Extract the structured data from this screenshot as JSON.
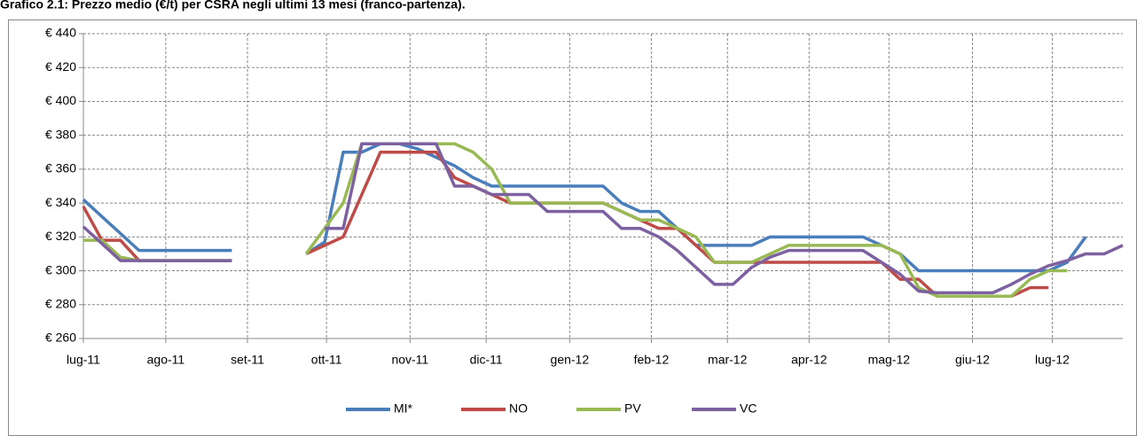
{
  "chart_data": {
    "type": "line",
    "title": "Grafico 2.1: Prezzo medio (€/t) per CSRA negli ultimi 13 mesi (franco-partenza).",
    "x": [
      0,
      1,
      2,
      3,
      4,
      5,
      6,
      7,
      8,
      9,
      10,
      11,
      12,
      13,
      14,
      15,
      16,
      17,
      18,
      19,
      20,
      21,
      22,
      23,
      24,
      25,
      26,
      27,
      28,
      29,
      30,
      31,
      32,
      33,
      34,
      35,
      36,
      37,
      38,
      39,
      40,
      41,
      42,
      43,
      44,
      45,
      46,
      47,
      48,
      49,
      50,
      51,
      52,
      53,
      54,
      55,
      56
    ],
    "xlim": [
      0,
      56
    ],
    "xticks": [
      {
        "value": 0,
        "label": "lug-11"
      },
      {
        "value": 4.44,
        "label": "ago-11"
      },
      {
        "value": 8.84,
        "label": "set-11"
      },
      {
        "value": 13.1,
        "label": "ott-11"
      },
      {
        "value": 17.6,
        "label": "nov-11"
      },
      {
        "value": 21.7,
        "label": "dic-11"
      },
      {
        "value": 26.2,
        "label": "gen-12"
      },
      {
        "value": 30.6,
        "label": "feb-12"
      },
      {
        "value": 34.7,
        "label": "mar-12"
      },
      {
        "value": 39.1,
        "label": "apr-12"
      },
      {
        "value": 43.4,
        "label": "mag-12"
      },
      {
        "value": 47.9,
        "label": "giu-12"
      },
      {
        "value": 52.2,
        "label": "lug-12"
      }
    ],
    "ylim": [
      260,
      440
    ],
    "yticks": [
      {
        "value": 260,
        "label": "€ 260"
      },
      {
        "value": 280,
        "label": "€ 280"
      },
      {
        "value": 300,
        "label": "€ 300"
      },
      {
        "value": 320,
        "label": "€ 320"
      },
      {
        "value": 340,
        "label": "€ 340"
      },
      {
        "value": 360,
        "label": "€ 360"
      },
      {
        "value": 380,
        "label": "€ 380"
      },
      {
        "value": 400,
        "label": "€ 400"
      },
      {
        "value": 420,
        "label": "€ 420"
      },
      {
        "value": 440,
        "label": "€ 440"
      }
    ],
    "grid": true,
    "legend": "bottom",
    "series": [
      {
        "name": "MI*",
        "color": "#4a7ebb",
        "values": [
          342,
          332,
          322,
          312,
          312,
          312,
          312,
          312,
          312,
          null,
          null,
          null,
          310,
          317,
          370,
          370,
          375,
          375,
          372,
          367,
          362,
          355,
          350,
          350,
          350,
          350,
          350,
          350,
          350,
          340,
          335,
          335,
          325,
          315,
          315,
          315,
          315,
          320,
          320,
          320,
          320,
          320,
          320,
          315,
          310,
          300,
          300,
          300,
          300,
          300,
          300,
          300,
          300,
          305,
          320,
          null,
          null
        ]
      },
      {
        "name": "NO",
        "color": "#be4b48",
        "values": [
          338,
          318,
          318,
          306,
          306,
          306,
          306,
          306,
          306,
          null,
          null,
          null,
          310,
          315,
          320,
          345,
          370,
          370,
          370,
          370,
          355,
          350,
          345,
          340,
          340,
          340,
          340,
          340,
          340,
          335,
          330,
          325,
          325,
          315,
          305,
          305,
          305,
          305,
          305,
          305,
          305,
          305,
          305,
          305,
          295,
          295,
          285,
          285,
          285,
          285,
          285,
          290,
          290,
          null,
          null,
          null,
          null
        ]
      },
      {
        "name": "PV",
        "color": "#98b954",
        "values": [
          318,
          318,
          308,
          306,
          306,
          306,
          306,
          306,
          306,
          null,
          null,
          null,
          310,
          325,
          340,
          375,
          375,
          375,
          375,
          375,
          375,
          370,
          360,
          340,
          340,
          340,
          340,
          340,
          340,
          335,
          330,
          330,
          325,
          320,
          305,
          305,
          305,
          310,
          315,
          315,
          315,
          315,
          315,
          315,
          310,
          290,
          285,
          285,
          285,
          285,
          285,
          295,
          300,
          300,
          null,
          null,
          null
        ]
      },
      {
        "name": "VC",
        "color": "#7d60a0",
        "values": [
          326,
          316,
          306,
          306,
          306,
          306,
          306,
          306,
          306,
          null,
          null,
          null,
          null,
          325,
          325,
          375,
          375,
          375,
          375,
          375,
          350,
          350,
          345,
          345,
          345,
          335,
          335,
          335,
          335,
          325,
          325,
          320,
          312,
          302,
          292,
          292,
          302,
          308,
          312,
          312,
          312,
          312,
          312,
          305,
          298,
          288,
          287,
          287,
          287,
          287,
          292,
          298,
          303,
          306,
          310,
          310,
          315
        ]
      }
    ]
  }
}
